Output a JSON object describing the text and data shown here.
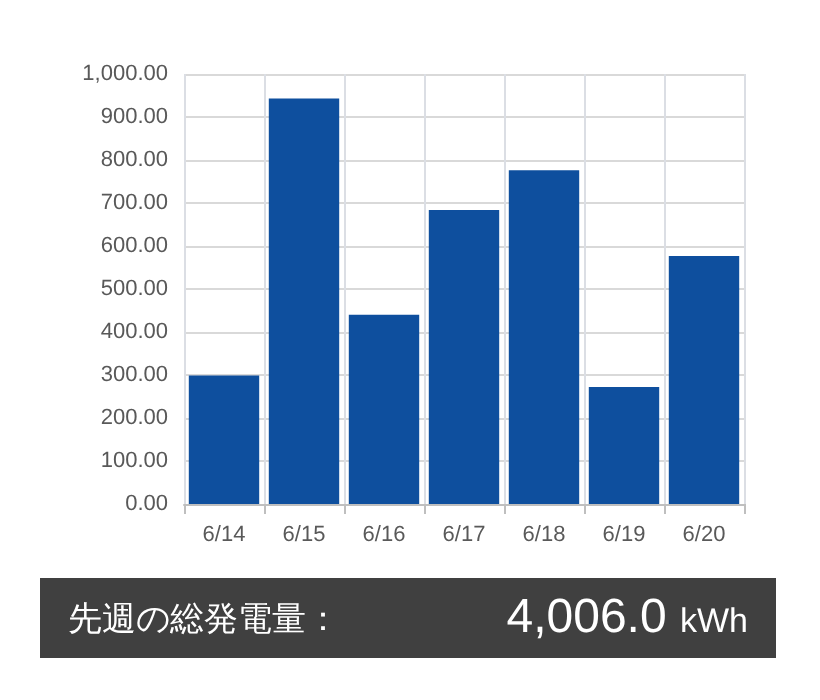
{
  "chart_data": {
    "type": "bar",
    "categories": [
      "6/14",
      "6/15",
      "6/16",
      "6/17",
      "6/18",
      "6/19",
      "6/20"
    ],
    "values": [
      299,
      943,
      440,
      684,
      776,
      272,
      577
    ],
    "color": "#0e4f9e",
    "ylim": [
      0,
      1000
    ],
    "yticks": [
      {
        "value": 0,
        "label": "0.00"
      },
      {
        "value": 100,
        "label": "100.00"
      },
      {
        "value": 200,
        "label": "200.00"
      },
      {
        "value": 300,
        "label": "300.00"
      },
      {
        "value": 400,
        "label": "400.00"
      },
      {
        "value": 500,
        "label": "500.00"
      },
      {
        "value": 600,
        "label": "600.00"
      },
      {
        "value": 700,
        "label": "700.00"
      },
      {
        "value": 800,
        "label": "800.00"
      },
      {
        "value": 900,
        "label": "900.00"
      },
      {
        "value": 1000,
        "label": "1,000.00"
      }
    ],
    "grid": true,
    "annotations": [
      "先週の総発電量：",
      "4,006.0 kWh"
    ]
  }
}
